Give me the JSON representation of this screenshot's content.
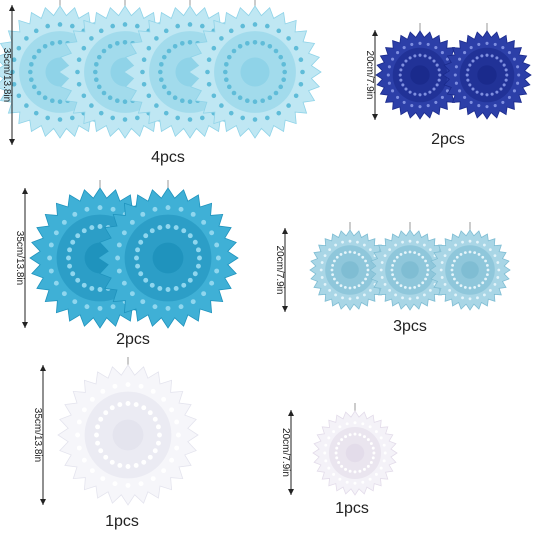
{
  "groups": [
    {
      "size": "35cm/13.8in",
      "count": "4pcs"
    },
    {
      "size": "20cm/7.9in",
      "count": "2pcs"
    },
    {
      "size": "35cm/13.8in",
      "count": "2pcs"
    },
    {
      "size": "20cm/7.9in",
      "count": "3pcs"
    },
    {
      "size": "35cm/13.8in",
      "count": "1pcs"
    },
    {
      "size": "20cm/7.9in",
      "count": "1pcs"
    }
  ]
}
